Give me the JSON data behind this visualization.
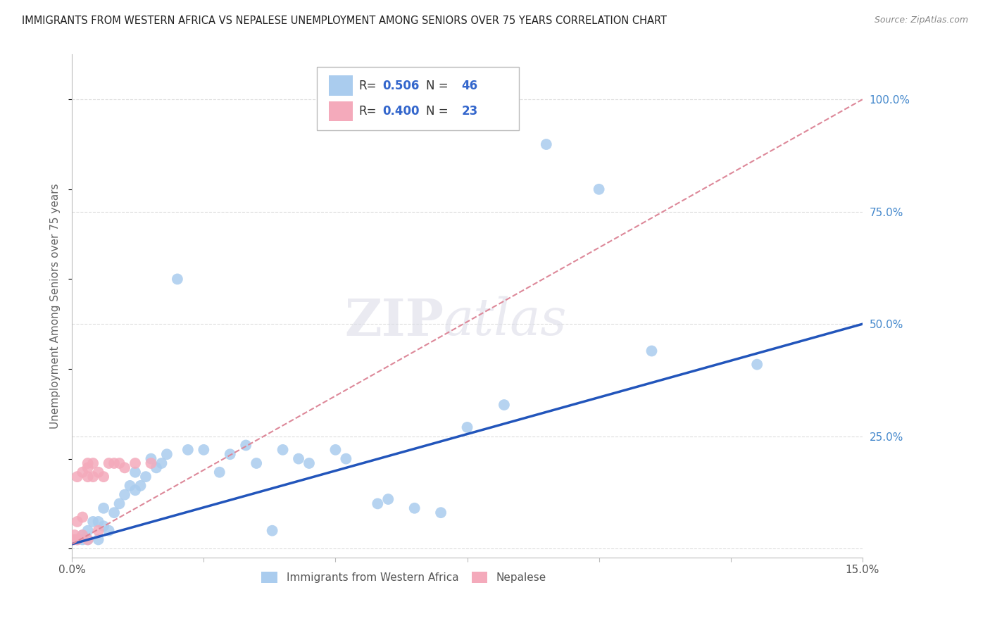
{
  "title": "IMMIGRANTS FROM WESTERN AFRICA VS NEPALESE UNEMPLOYMENT AMONG SENIORS OVER 75 YEARS CORRELATION CHART",
  "source": "Source: ZipAtlas.com",
  "ylabel": "Unemployment Among Seniors over 75 years",
  "xlim": [
    0.0,
    0.15
  ],
  "ylim": [
    -0.02,
    1.1
  ],
  "xticks": [
    0.0,
    0.025,
    0.05,
    0.075,
    0.1,
    0.125,
    0.15
  ],
  "xticklabels": [
    "0.0%",
    "",
    "",
    "",
    "",
    "",
    "15.0%"
  ],
  "yticks_right": [
    0.0,
    0.25,
    0.5,
    0.75,
    1.0
  ],
  "yticklabels_right": [
    "",
    "25.0%",
    "50.0%",
    "75.0%",
    "100.0%"
  ],
  "blue_R": "0.506",
  "blue_N": "46",
  "pink_R": "0.400",
  "pink_N": "23",
  "blue_scatter_color": "#AACCEE",
  "pink_scatter_color": "#F4AABB",
  "blue_line_color": "#2255BB",
  "pink_line_color": "#DD8899",
  "grid_color": "#DDDDDD",
  "bg_color": "#FFFFFF",
  "legend_label_blue": "Immigrants from Western Africa",
  "legend_label_pink": "Nepalese",
  "blue_line_x": [
    0.0,
    0.15
  ],
  "blue_line_y": [
    0.01,
    0.5
  ],
  "pink_line_x": [
    0.0,
    0.15
  ],
  "pink_line_y": [
    0.01,
    1.0
  ],
  "blue_x": [
    0.001,
    0.002,
    0.002,
    0.003,
    0.003,
    0.004,
    0.005,
    0.005,
    0.006,
    0.006,
    0.007,
    0.008,
    0.009,
    0.01,
    0.011,
    0.012,
    0.012,
    0.013,
    0.014,
    0.015,
    0.016,
    0.017,
    0.018,
    0.02,
    0.022,
    0.025,
    0.028,
    0.03,
    0.033,
    0.035,
    0.038,
    0.04,
    0.043,
    0.045,
    0.05,
    0.052,
    0.058,
    0.06,
    0.065,
    0.07,
    0.075,
    0.082,
    0.09,
    0.1,
    0.11,
    0.13
  ],
  "blue_y": [
    0.02,
    0.03,
    0.02,
    0.04,
    0.02,
    0.06,
    0.06,
    0.02,
    0.05,
    0.09,
    0.04,
    0.08,
    0.1,
    0.12,
    0.14,
    0.13,
    0.17,
    0.14,
    0.16,
    0.2,
    0.18,
    0.19,
    0.21,
    0.6,
    0.22,
    0.22,
    0.17,
    0.21,
    0.23,
    0.19,
    0.04,
    0.22,
    0.2,
    0.19,
    0.22,
    0.2,
    0.1,
    0.11,
    0.09,
    0.08,
    0.27,
    0.32,
    0.9,
    0.8,
    0.44,
    0.41
  ],
  "pink_x": [
    0.0003,
    0.0005,
    0.001,
    0.001,
    0.001,
    0.002,
    0.002,
    0.002,
    0.003,
    0.003,
    0.003,
    0.003,
    0.004,
    0.004,
    0.005,
    0.005,
    0.006,
    0.007,
    0.008,
    0.009,
    0.01,
    0.012,
    0.015
  ],
  "pink_y": [
    0.02,
    0.03,
    0.02,
    0.06,
    0.16,
    0.03,
    0.07,
    0.17,
    0.02,
    0.16,
    0.18,
    0.19,
    0.16,
    0.19,
    0.17,
    0.04,
    0.16,
    0.19,
    0.19,
    0.19,
    0.18,
    0.19,
    0.19
  ]
}
